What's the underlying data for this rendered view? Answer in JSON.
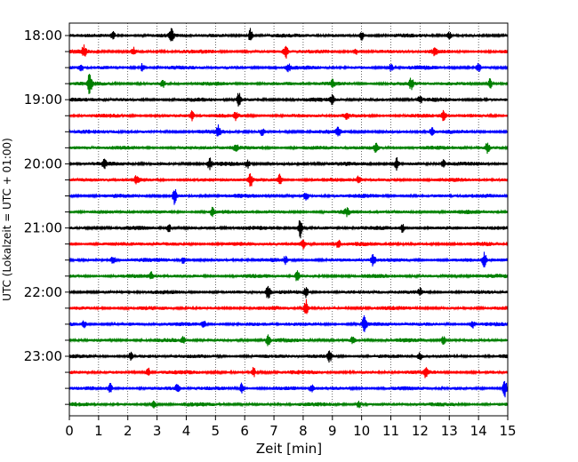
{
  "chart_data": {
    "type": "line",
    "subtype": "helicorder",
    "title": "",
    "xlabel": "Zeit  [min]",
    "ylabel": "UTC (Lokalzeit = UTC + 01:00)",
    "xlim": [
      0,
      15
    ],
    "x_ticks": [
      "0",
      "1",
      "2",
      "3",
      "4",
      "5",
      "6",
      "7",
      "8",
      "9",
      "10",
      "11",
      "12",
      "13",
      "14",
      "15"
    ],
    "y_tick_labels": [
      "18:00",
      "19:00",
      "20:00",
      "21:00",
      "22:00",
      "23:00"
    ],
    "row_interval_min": 15,
    "start_utc": "18:00",
    "trace_colors": [
      "#000000",
      "#ff0000",
      "#0000ff",
      "#008000"
    ],
    "grid": "vertical dotted at each minute",
    "rows": [
      {
        "time": "18:00",
        "color": "#000000",
        "events": [
          [
            1.5,
            4
          ],
          [
            3.5,
            7
          ],
          [
            6.2,
            8
          ],
          [
            10,
            5
          ],
          [
            13,
            4
          ]
        ]
      },
      {
        "time": "18:15",
        "color": "#ff0000",
        "events": [
          [
            0.5,
            6
          ],
          [
            2.2,
            4
          ],
          [
            7.4,
            9
          ],
          [
            9.8,
            4
          ],
          [
            12.5,
            4
          ]
        ]
      },
      {
        "time": "18:30",
        "color": "#0000ff",
        "events": [
          [
            0.4,
            4
          ],
          [
            2.5,
            5
          ],
          [
            7.5,
            4
          ],
          [
            11,
            4
          ],
          [
            14,
            4
          ]
        ]
      },
      {
        "time": "18:45",
        "color": "#008000",
        "events": [
          [
            0.7,
            12
          ],
          [
            3.2,
            4
          ],
          [
            9,
            4
          ],
          [
            11.7,
            6
          ],
          [
            14.4,
            6
          ]
        ]
      },
      {
        "time": "19:00",
        "color": "#000000",
        "events": [
          [
            5.8,
            8
          ],
          [
            9,
            5
          ],
          [
            12,
            4
          ]
        ]
      },
      {
        "time": "19:15",
        "color": "#ff0000",
        "events": [
          [
            4.2,
            5
          ],
          [
            5.7,
            4
          ],
          [
            9.5,
            4
          ],
          [
            12.8,
            6
          ]
        ]
      },
      {
        "time": "19:30",
        "color": "#0000ff",
        "events": [
          [
            5.1,
            6
          ],
          [
            6.6,
            4
          ],
          [
            9.2,
            4
          ],
          [
            12.4,
            4
          ]
        ]
      },
      {
        "time": "19:45",
        "color": "#008000",
        "events": [
          [
            5.7,
            4
          ],
          [
            10.5,
            5
          ],
          [
            14.3,
            6
          ]
        ]
      },
      {
        "time": "20:00",
        "color": "#000000",
        "events": [
          [
            1.2,
            4
          ],
          [
            4.8,
            6
          ],
          [
            6.1,
            4
          ],
          [
            11.2,
            7
          ],
          [
            12.8,
            4
          ]
        ]
      },
      {
        "time": "20:15",
        "color": "#ff0000",
        "events": [
          [
            2.3,
            4
          ],
          [
            6.2,
            7
          ],
          [
            7.2,
            6
          ],
          [
            9.9,
            4
          ]
        ]
      },
      {
        "time": "20:30",
        "color": "#0000ff",
        "events": [
          [
            3.6,
            9
          ],
          [
            8.1,
            5
          ]
        ]
      },
      {
        "time": "20:45",
        "color": "#008000",
        "events": [
          [
            4.9,
            5
          ],
          [
            9.5,
            4
          ]
        ]
      },
      {
        "time": "21:00",
        "color": "#000000",
        "events": [
          [
            3.4,
            5
          ],
          [
            7.9,
            11
          ],
          [
            11.4,
            5
          ]
        ]
      },
      {
        "time": "21:15",
        "color": "#ff0000",
        "events": [
          [
            8,
            6
          ],
          [
            9.2,
            5
          ]
        ]
      },
      {
        "time": "21:30",
        "color": "#0000ff",
        "events": [
          [
            1.5,
            5
          ],
          [
            3.9,
            4
          ],
          [
            7.4,
            4
          ],
          [
            10.4,
            7
          ],
          [
            14.2,
            8
          ]
        ]
      },
      {
        "time": "21:45",
        "color": "#008000",
        "events": [
          [
            2.8,
            4
          ],
          [
            7.8,
            6
          ]
        ]
      },
      {
        "time": "22:00",
        "color": "#000000",
        "events": [
          [
            6.8,
            8
          ],
          [
            8.1,
            6
          ],
          [
            12,
            4
          ]
        ]
      },
      {
        "time": "22:15",
        "color": "#ff0000",
        "events": [
          [
            8.1,
            9
          ]
        ]
      },
      {
        "time": "22:30",
        "color": "#0000ff",
        "events": [
          [
            0.5,
            4
          ],
          [
            4.6,
            4
          ],
          [
            10.1,
            11
          ],
          [
            13.8,
            4
          ]
        ]
      },
      {
        "time": "22:45",
        "color": "#008000",
        "events": [
          [
            3.9,
            4
          ],
          [
            6.8,
            6
          ],
          [
            9.7,
            4
          ],
          [
            12.8,
            5
          ]
        ]
      },
      {
        "time": "23:00",
        "color": "#000000",
        "events": [
          [
            2.1,
            4
          ],
          [
            8.9,
            6
          ],
          [
            12,
            4
          ]
        ]
      },
      {
        "time": "23:15",
        "color": "#ff0000",
        "events": [
          [
            2.7,
            5
          ],
          [
            6.3,
            5
          ],
          [
            12.2,
            5
          ]
        ]
      },
      {
        "time": "23:30",
        "color": "#0000ff",
        "events": [
          [
            1.4,
            5
          ],
          [
            3.7,
            5
          ],
          [
            5.9,
            6
          ],
          [
            8.3,
            4
          ],
          [
            14.9,
            9
          ]
        ]
      },
      {
        "time": "23:45",
        "color": "#008000",
        "events": [
          [
            2.9,
            4
          ],
          [
            9.9,
            4
          ]
        ]
      }
    ]
  }
}
